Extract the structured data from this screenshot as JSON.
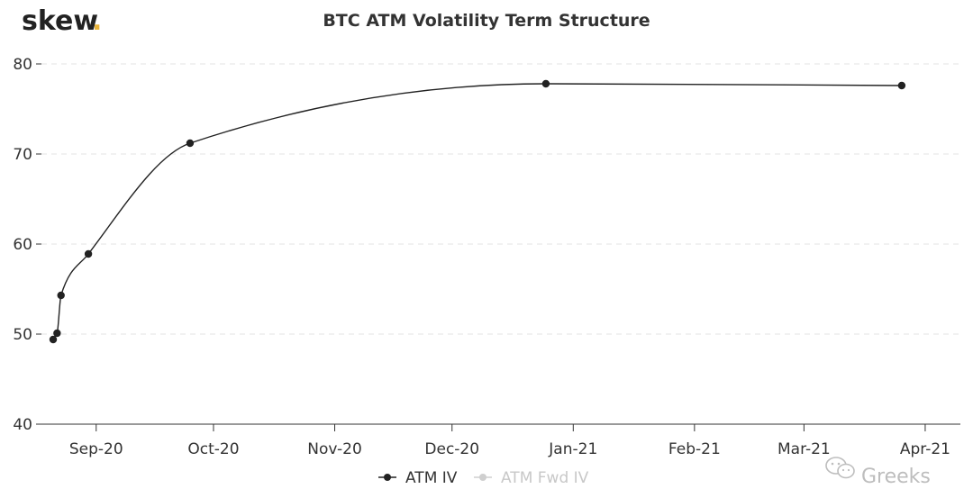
{
  "brand": {
    "name": "skew",
    "dot": ".",
    "dot_color": "#e8b33a"
  },
  "watermark": {
    "text": "Greeks",
    "icon": "wechat-icon"
  },
  "chart_data": {
    "type": "line",
    "title": "BTC ATM Volatility Term Structure",
    "xlabel": "",
    "ylabel": "",
    "x_ticks": [
      "Sep-20",
      "Oct-20",
      "Nov-20",
      "Dec-20",
      "Jan-21",
      "Feb-21",
      "Mar-21",
      "Apr-21"
    ],
    "x_tick_dates": [
      "2020-09-01",
      "2020-10-01",
      "2020-11-01",
      "2020-12-01",
      "2021-01-01",
      "2021-02-01",
      "2021-03-01",
      "2021-04-01"
    ],
    "xlim": [
      "2020-08-18",
      "2021-04-10"
    ],
    "ylim": [
      40,
      80
    ],
    "y_ticks": [
      40,
      50,
      60,
      70,
      80
    ],
    "grid": true,
    "legend_position": "bottom-center",
    "series": [
      {
        "name": "ATM IV",
        "color": "#222222",
        "visible": true,
        "points": [
          {
            "x": "2020-08-21",
            "y": 49.4
          },
          {
            "x": "2020-08-22",
            "y": 50.1
          },
          {
            "x": "2020-08-23",
            "y": 54.3
          },
          {
            "x": "2020-08-30",
            "y": 58.9
          },
          {
            "x": "2020-09-25",
            "y": 71.2
          },
          {
            "x": "2020-12-25",
            "y": 77.8
          },
          {
            "x": "2021-03-26",
            "y": 77.6
          }
        ]
      },
      {
        "name": "ATM Fwd IV",
        "color": "#cfcfcf",
        "visible": false,
        "points": []
      }
    ]
  }
}
